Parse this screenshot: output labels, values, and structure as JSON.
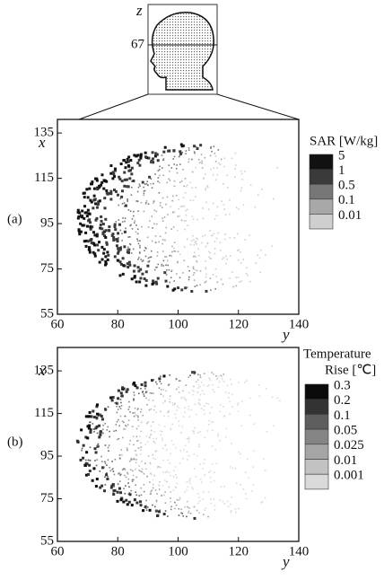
{
  "inset": {
    "axis_label": "z",
    "slice_label": "67"
  },
  "chart_data": [
    {
      "type": "heatmap",
      "panel_label": "(a)",
      "xlabel": "y",
      "ylabel": "x",
      "xlim": [
        60,
        140
      ],
      "ylim": [
        55,
        141
      ],
      "xticks": [
        60,
        80,
        100,
        120,
        140
      ],
      "yticks": [
        55,
        75,
        95,
        115,
        135
      ],
      "legend_title": [
        "SAR [W/kg]"
      ],
      "legend_levels": [
        5,
        1,
        0.5,
        0.1,
        0.01
      ],
      "legend_colors": [
        "#111111",
        "#3a3a3a",
        "#777777",
        "#a8a8a8",
        "#cfcfcf"
      ]
    },
    {
      "type": "heatmap",
      "panel_label": "(b)",
      "xlabel": "y",
      "ylabel": "x",
      "xlim": [
        60,
        140
      ],
      "ylim": [
        55,
        146
      ],
      "xticks": [
        60,
        80,
        100,
        120,
        140
      ],
      "yticks": [
        55,
        75,
        95,
        115,
        135
      ],
      "legend_title": [
        "Temperature",
        "Rise [℃]"
      ],
      "legend_levels": [
        0.3,
        0.2,
        0.1,
        0.05,
        0.025,
        0.01,
        0.001
      ],
      "legend_colors": [
        "#0a0a0a",
        "#333333",
        "#5e5e5e",
        "#858585",
        "#a5a5a5",
        "#c2c2c2",
        "#dadada"
      ]
    }
  ]
}
